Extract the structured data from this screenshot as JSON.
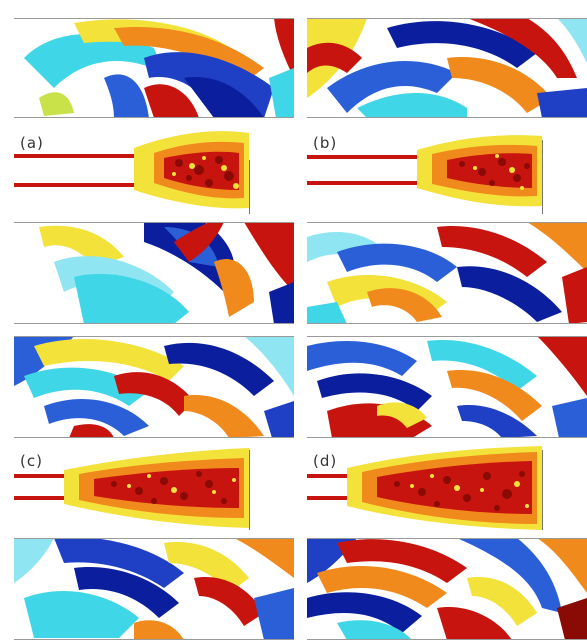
{
  "panel_labels": {
    "a": "(a)",
    "b": "(b)",
    "c": "(c)",
    "d": "(d)"
  },
  "colors": {
    "deep_blue": "#0a1e9e",
    "blue": "#2a5fd8",
    "cyan": "#3fd6e8",
    "light_cyan": "#8fe6f2",
    "yellow": "#f2e23a",
    "orange": "#f08a1c",
    "red": "#c8140e",
    "dark_red": "#8a0a06",
    "white": "#ffffff"
  },
  "panels": [
    "acoustic-field-a-upper",
    "jet-a",
    "acoustic-field-a-lower",
    "acoustic-field-b-upper",
    "jet-b",
    "acoustic-field-b-lower",
    "acoustic-field-c-upper",
    "jet-c",
    "acoustic-field-c-lower",
    "acoustic-field-d-upper",
    "jet-d",
    "acoustic-field-d-lower"
  ]
}
